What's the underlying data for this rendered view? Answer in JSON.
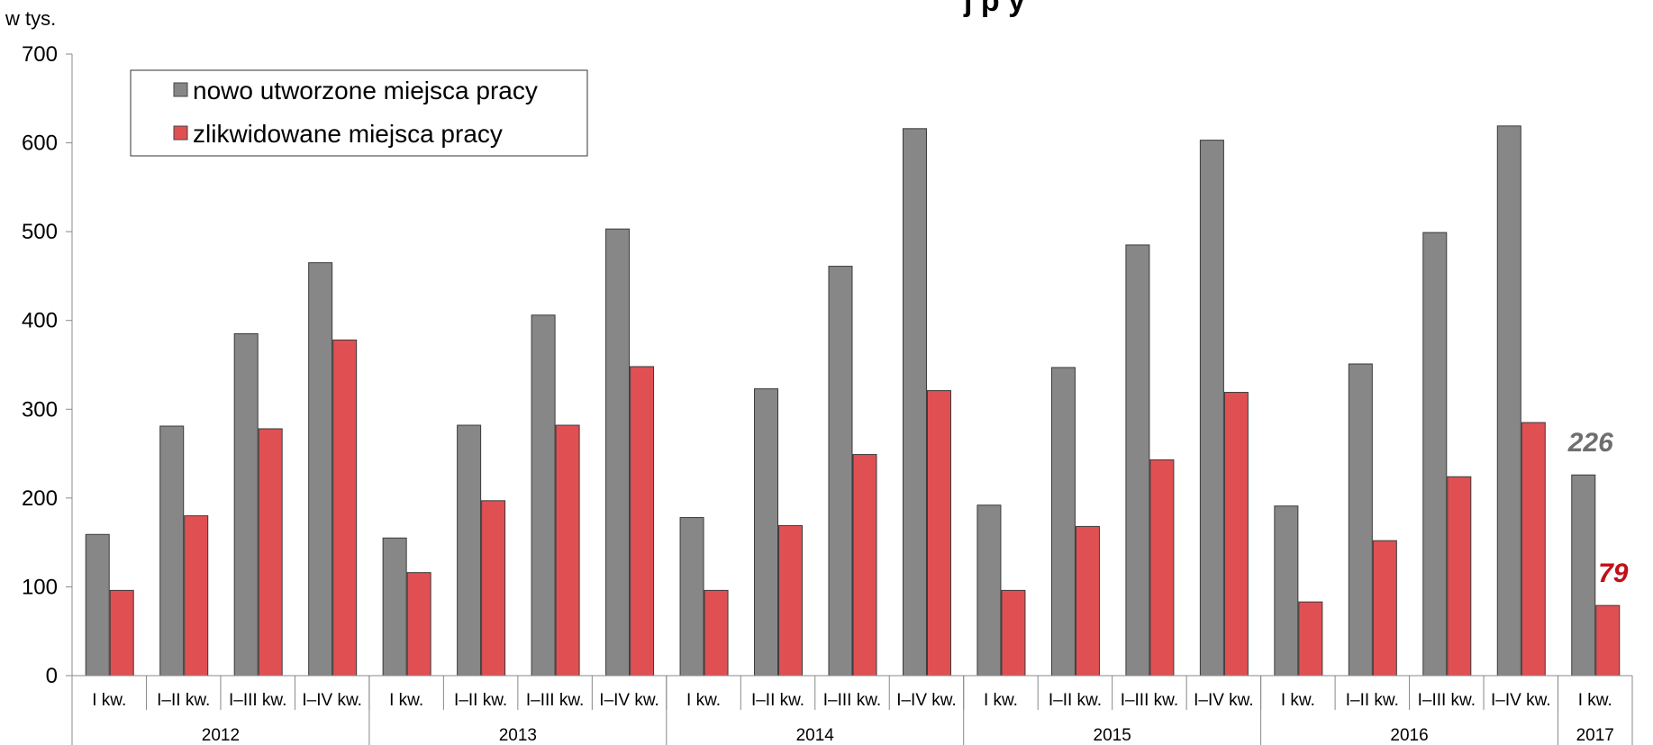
{
  "chart_data": {
    "type": "bar",
    "title": "j  p  y",
    "ylabel": "w tys.",
    "ylim": [
      0,
      700
    ],
    "yticks": [
      0,
      100,
      200,
      300,
      400,
      500,
      600,
      700
    ],
    "categories": [
      "I kw.",
      "I–II kw.",
      "I–III kw.",
      "I–IV kw.",
      "I kw.",
      "I–II kw.",
      "I–III kw.",
      "I–IV kw.",
      "I kw.",
      "I–II kw.",
      "I–III kw.",
      "I–IV kw.",
      "I kw.",
      "I–II kw.",
      "I–III kw.",
      "I–IV kw.",
      "I kw.",
      "I–II kw.",
      "I–III kw.",
      "I–IV kw.",
      "I kw."
    ],
    "groups": [
      {
        "label": "2012",
        "count": 4
      },
      {
        "label": "2013",
        "count": 4
      },
      {
        "label": "2014",
        "count": 4
      },
      {
        "label": "2015",
        "count": 4
      },
      {
        "label": "2016",
        "count": 4
      },
      {
        "label": "2017",
        "count": 1
      }
    ],
    "series": [
      {
        "name": "nowo utworzone miejsca pracy",
        "color": "#878787",
        "values": [
          159,
          281,
          385,
          465,
          155,
          282,
          406,
          503,
          178,
          323,
          461,
          616,
          192,
          347,
          485,
          603,
          191,
          351,
          499,
          619,
          226
        ]
      },
      {
        "name": "zlikwidowane miejsca pracy",
        "color": "#e05053",
        "values": [
          96,
          180,
          278,
          378,
          116,
          197,
          282,
          348,
          96,
          169,
          249,
          321,
          96,
          168,
          243,
          319,
          83,
          152,
          224,
          285,
          79
        ]
      }
    ],
    "legend_position": "top-left",
    "annotations": [
      {
        "text": "226",
        "series": 0,
        "index": 20,
        "color": "#6e6e6e"
      },
      {
        "text": "79",
        "series": 1,
        "index": 20,
        "color": "#c0101a"
      }
    ],
    "grid": false
  }
}
